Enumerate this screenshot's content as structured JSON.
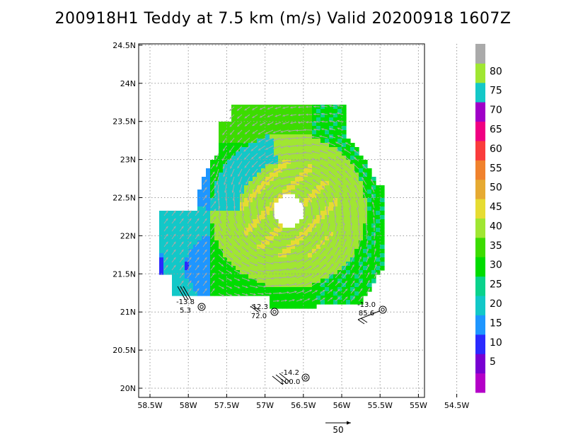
{
  "chart_data": {
    "type": "vector field / wind speed map",
    "title": "200918H1 Teddy at 7.5 km (m/s) Valid 20200918 1607Z",
    "xlim": [
      -58.5,
      -54.5
    ],
    "ylim": [
      20.0,
      24.5
    ],
    "x_ticks": [
      "58.5W",
      "58W",
      "57.5W",
      "57W",
      "56.5W",
      "56W",
      "55.5W",
      "55W",
      "54.5W"
    ],
    "y_ticks": [
      "20N",
      "20.5N",
      "21N",
      "21.5N",
      "22N",
      "22.5N",
      "23N",
      "23.5N",
      "24N",
      "24.5N"
    ],
    "grid": true,
    "center": {
      "lon": -56.5,
      "lat": 22.28
    },
    "colorbar": {
      "levels": [
        "5",
        "10",
        "15",
        "20",
        "25",
        "30",
        "35",
        "40",
        "45",
        "50",
        "55",
        "60",
        "65",
        "70",
        "75",
        "80"
      ],
      "colors": [
        "#b400c8",
        "#7800d2",
        "#2a2aff",
        "#1e96ff",
        "#12c8c8",
        "#0ad28c",
        "#00dc00",
        "#3cdc00",
        "#a0e632",
        "#e6dc32",
        "#e6aa32",
        "#f0822d",
        "#fa3c3c",
        "#f00082",
        "#a000c8",
        "#14c8c8",
        "#a0e632",
        "#aaaaaa"
      ]
    },
    "observations": [
      {
        "top": "-13.8",
        "bottom": "5.3",
        "lon": -58.0,
        "lat": 21.07
      },
      {
        "top": "-12.3",
        "bottom": "72.0",
        "lon": -56.84,
        "lat": 21.0
      },
      {
        "top": "-13.0",
        "bottom": "85.6",
        "lon": -55.18,
        "lat": 21.03
      },
      {
        "top": "-14.2",
        "bottom": "100.0",
        "lon": -56.23,
        "lat": 20.14
      }
    ],
    "reference_vector": {
      "label": "50"
    }
  }
}
